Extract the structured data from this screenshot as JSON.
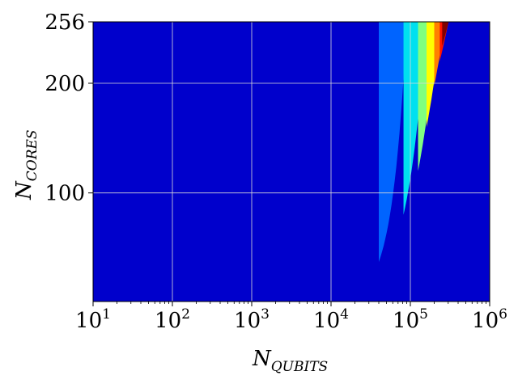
{
  "chart_data": {
    "type": "heatmap",
    "title": "",
    "xlabel": {
      "main": "N",
      "sub": "QUBITS"
    },
    "ylabel": {
      "main": "N",
      "sub": "CORES"
    },
    "x_scale": "log",
    "xlim": [
      10,
      1000000
    ],
    "ylim": [
      1,
      256
    ],
    "grid": true,
    "x_ticks": [
      {
        "value": 10,
        "base": "10",
        "exp": "1"
      },
      {
        "value": 100,
        "base": "10",
        "exp": "2"
      },
      {
        "value": 1000,
        "base": "10",
        "exp": "3"
      },
      {
        "value": 10000,
        "base": "10",
        "exp": "4"
      },
      {
        "value": 100000,
        "base": "10",
        "exp": "5"
      },
      {
        "value": 1000000,
        "base": "10",
        "exp": "6"
      }
    ],
    "y_ticks": [
      {
        "value": 100,
        "label": "100"
      },
      {
        "value": 200,
        "label": "200"
      },
      {
        "value": 256,
        "label": "256"
      }
    ],
    "background_color": "#0000cc",
    "levels": [
      {
        "color": "#0064ff",
        "x_start": 40000,
        "y_min": 37,
        "growth": 0.7
      },
      {
        "color": "#00e0f0",
        "x_start": 82000,
        "y_min": 80,
        "growth": 0.95
      },
      {
        "color": "#80ff80",
        "x_start": 125000,
        "y_min": 120,
        "growth": 1.25
      },
      {
        "color": "#ffff00",
        "x_start": 160000,
        "y_min": 160,
        "growth": 1.6
      },
      {
        "color": "#ff8000",
        "x_start": 200000,
        "y_min": 198,
        "growth": 2.1
      },
      {
        "color": "#ff1000",
        "x_start": 235000,
        "y_min": 220,
        "growth": 2.8
      },
      {
        "color": "#800000",
        "x_start": 252000,
        "y_min": 234,
        "growth": 3.5
      }
    ]
  }
}
